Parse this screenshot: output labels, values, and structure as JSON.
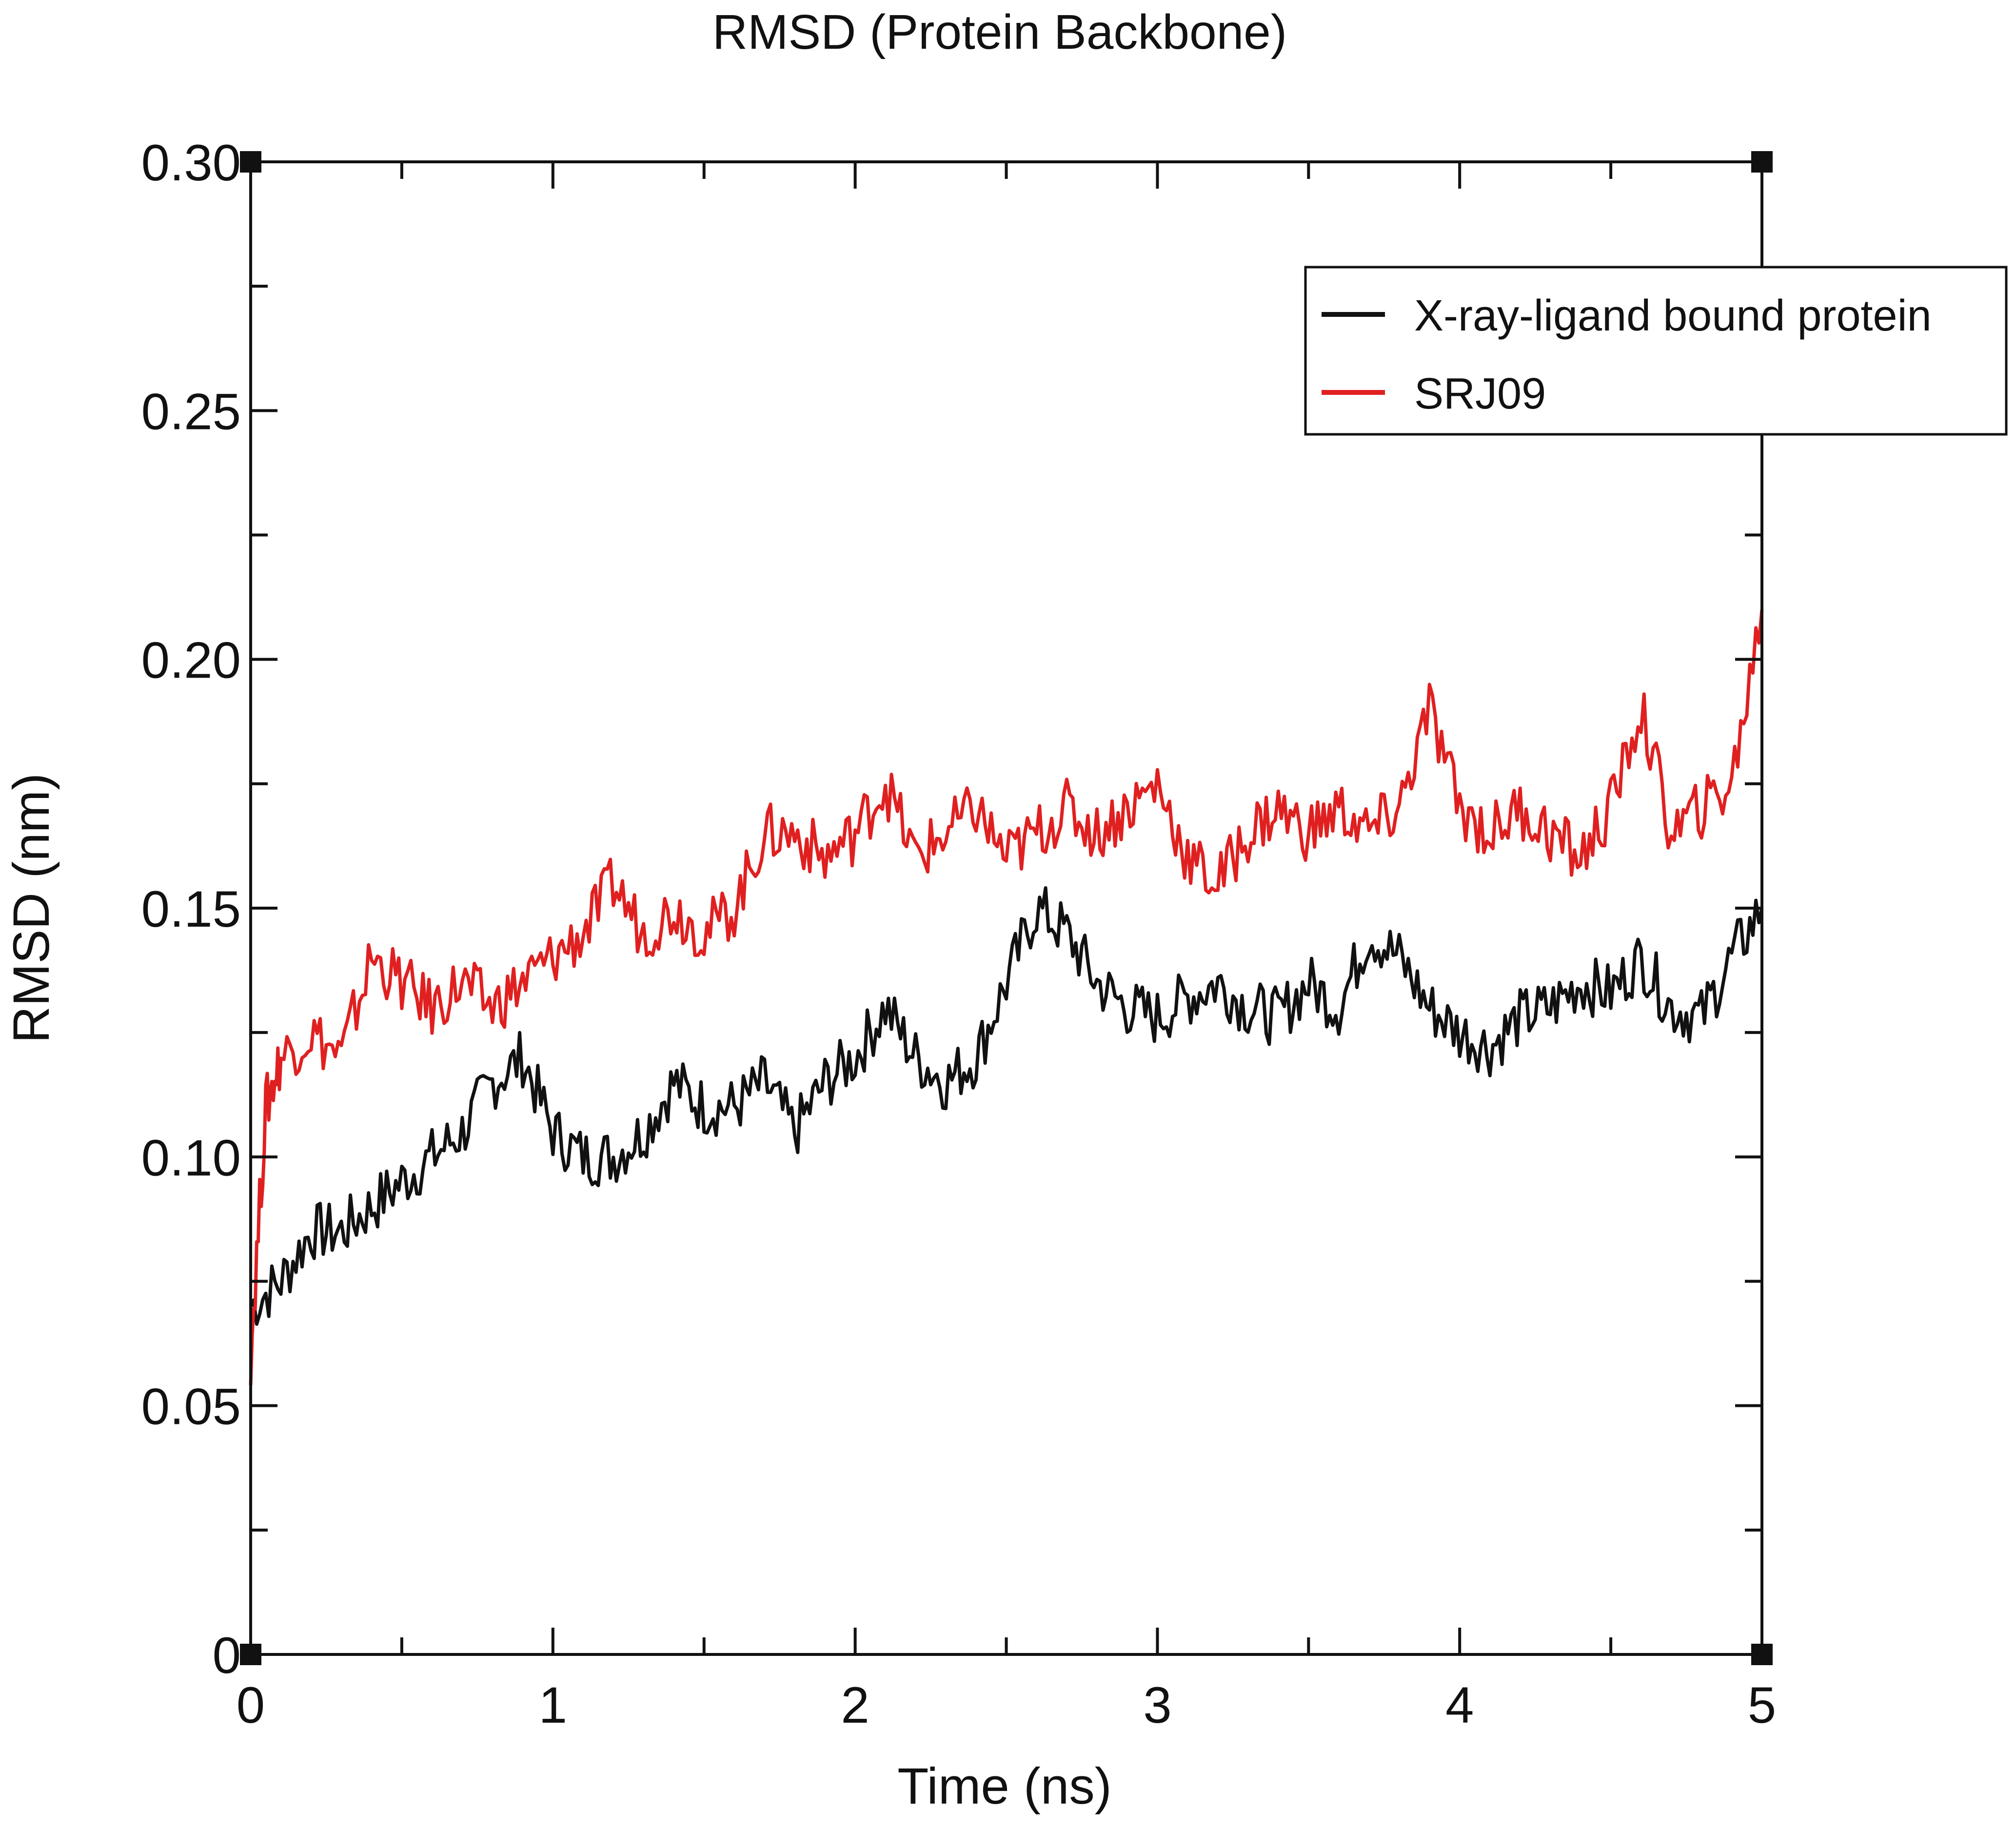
{
  "chart_data": {
    "type": "line",
    "title": "RMSD (Protein Backbone)",
    "xlabel": "Time (ns)",
    "ylabel": "RMSD (nm)",
    "xlim": [
      0,
      5
    ],
    "ylim": [
      0,
      0.3
    ],
    "xticks": [
      "0",
      "1",
      "2",
      "3",
      "4",
      "5"
    ],
    "yticks": [
      "0",
      "0.05",
      "0.10",
      "0.15",
      "0.20",
      "0.25",
      "0.30"
    ],
    "grid": false,
    "legend_position": "top-right",
    "series": [
      {
        "name": "X-ray-ligand bound protein",
        "color": "#111111",
        "x": [
          0,
          0.1,
          0.2,
          0.3,
          0.4,
          0.5,
          0.6,
          0.7,
          0.8,
          0.9,
          1.0,
          1.1,
          1.2,
          1.3,
          1.4,
          1.5,
          1.6,
          1.7,
          1.8,
          1.9,
          2.0,
          2.1,
          2.2,
          2.3,
          2.4,
          2.5,
          2.6,
          2.7,
          2.8,
          2.9,
          3.0,
          3.1,
          3.2,
          3.3,
          3.4,
          3.5,
          3.6,
          3.7,
          3.8,
          3.9,
          4.0,
          4.1,
          4.2,
          4.3,
          4.4,
          4.5,
          4.6,
          4.7,
          4.8,
          4.9,
          5.0
        ],
        "y": [
          0.07,
          0.075,
          0.085,
          0.085,
          0.09,
          0.095,
          0.1,
          0.105,
          0.115,
          0.12,
          0.105,
          0.1,
          0.1,
          0.105,
          0.115,
          0.11,
          0.11,
          0.115,
          0.105,
          0.115,
          0.12,
          0.13,
          0.12,
          0.115,
          0.12,
          0.135,
          0.15,
          0.145,
          0.135,
          0.13,
          0.128,
          0.132,
          0.135,
          0.13,
          0.128,
          0.135,
          0.13,
          0.145,
          0.14,
          0.13,
          0.125,
          0.122,
          0.128,
          0.13,
          0.135,
          0.133,
          0.14,
          0.13,
          0.128,
          0.14,
          0.15
        ]
      },
      {
        "name": "SRJ09",
        "color": "#e02020",
        "x": [
          0,
          0.05,
          0.1,
          0.2,
          0.3,
          0.4,
          0.5,
          0.6,
          0.7,
          0.8,
          0.9,
          1.0,
          1.1,
          1.2,
          1.3,
          1.4,
          1.5,
          1.6,
          1.7,
          1.8,
          1.9,
          2.0,
          2.1,
          2.2,
          2.3,
          2.4,
          2.5,
          2.6,
          2.7,
          2.8,
          2.9,
          3.0,
          3.1,
          3.2,
          3.3,
          3.4,
          3.5,
          3.6,
          3.7,
          3.8,
          3.9,
          4.0,
          4.1,
          4.2,
          4.3,
          4.4,
          4.5,
          4.6,
          4.7,
          4.8,
          4.9,
          5.0
        ],
        "y": [
          0.06,
          0.11,
          0.12,
          0.125,
          0.12,
          0.14,
          0.135,
          0.13,
          0.135,
          0.13,
          0.135,
          0.14,
          0.145,
          0.155,
          0.145,
          0.15,
          0.145,
          0.15,
          0.165,
          0.165,
          0.16,
          0.165,
          0.175,
          0.16,
          0.165,
          0.17,
          0.16,
          0.165,
          0.17,
          0.165,
          0.17,
          0.175,
          0.16,
          0.155,
          0.165,
          0.17,
          0.165,
          0.17,
          0.165,
          0.17,
          0.19,
          0.17,
          0.165,
          0.17,
          0.165,
          0.16,
          0.17,
          0.19,
          0.165,
          0.17,
          0.175,
          0.21
        ]
      }
    ]
  }
}
